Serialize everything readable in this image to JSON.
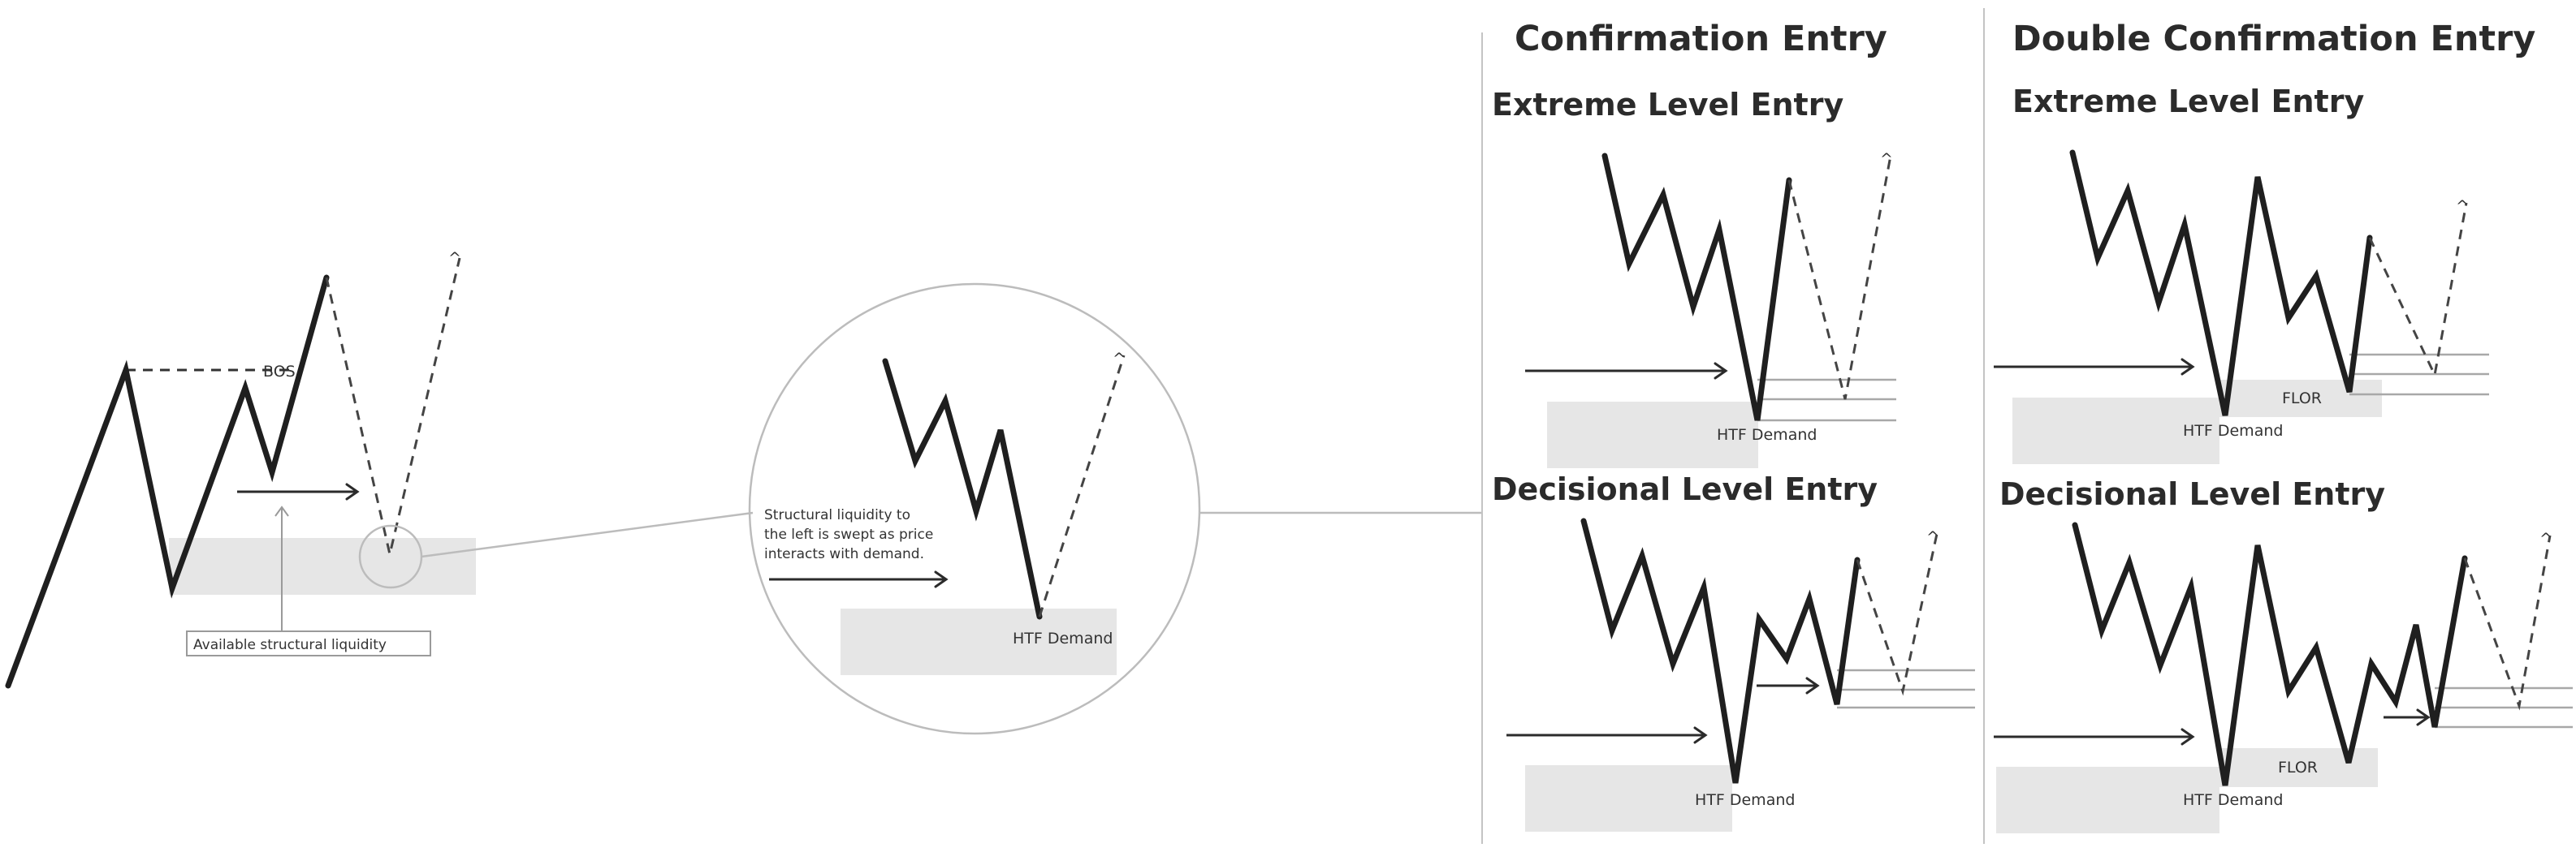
{
  "titles": {
    "confirmation": "Confirmation Entry",
    "double_confirmation": "Double Confirmation Entry"
  },
  "headings": {
    "extreme": "Extreme Level Entry",
    "decisional": "Decisional Level Entry"
  },
  "labels": {
    "bos": "BOS",
    "available_liquidity": "Available structural liquidity",
    "structural_note": [
      "Structural liquidity to",
      "the left is swept as price",
      "interacts with demand."
    ],
    "htf_demand": "HTF Demand",
    "flor": "FLOR",
    "target_mark": "^"
  },
  "colors": {
    "price_line": "#1f1f1f",
    "zone_fill": "#e6e6e6",
    "level_line": "#a8a8a8",
    "divider": "#c4c4c4"
  }
}
